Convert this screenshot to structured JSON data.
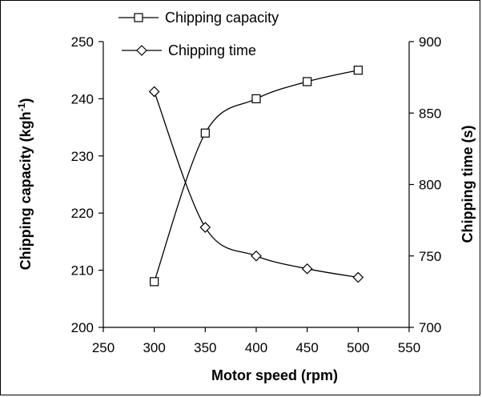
{
  "chart_data": {
    "type": "line",
    "title": "",
    "xlabel": "Motor speed (rpm)",
    "ylabel_left": "Chipping capacity (kgh",
    "ylabel_left_sup": "-1",
    "ylabel_left_tail": ")",
    "ylabel_right": "Chipping time (s)",
    "xlim": [
      250,
      550
    ],
    "ylim_left": [
      200,
      250
    ],
    "ylim_right": [
      700,
      900
    ],
    "xticks": [
      250,
      300,
      350,
      400,
      450,
      500,
      550
    ],
    "yticks_left": [
      200,
      210,
      220,
      230,
      240,
      250
    ],
    "yticks_right": [
      700,
      750,
      800,
      850,
      900
    ],
    "grid": false,
    "legend_position": "top",
    "series": [
      {
        "name": "Chipping capacity",
        "axis": "left",
        "marker": "square",
        "x": [
          300,
          350,
          400,
          450,
          500
        ],
        "values": [
          208,
          234,
          240,
          243,
          245
        ]
      },
      {
        "name": "Chipping time",
        "axis": "right",
        "marker": "diamond",
        "x": [
          300,
          350,
          400,
          450,
          500
        ],
        "values": [
          865,
          770,
          750,
          741,
          735
        ]
      }
    ]
  }
}
